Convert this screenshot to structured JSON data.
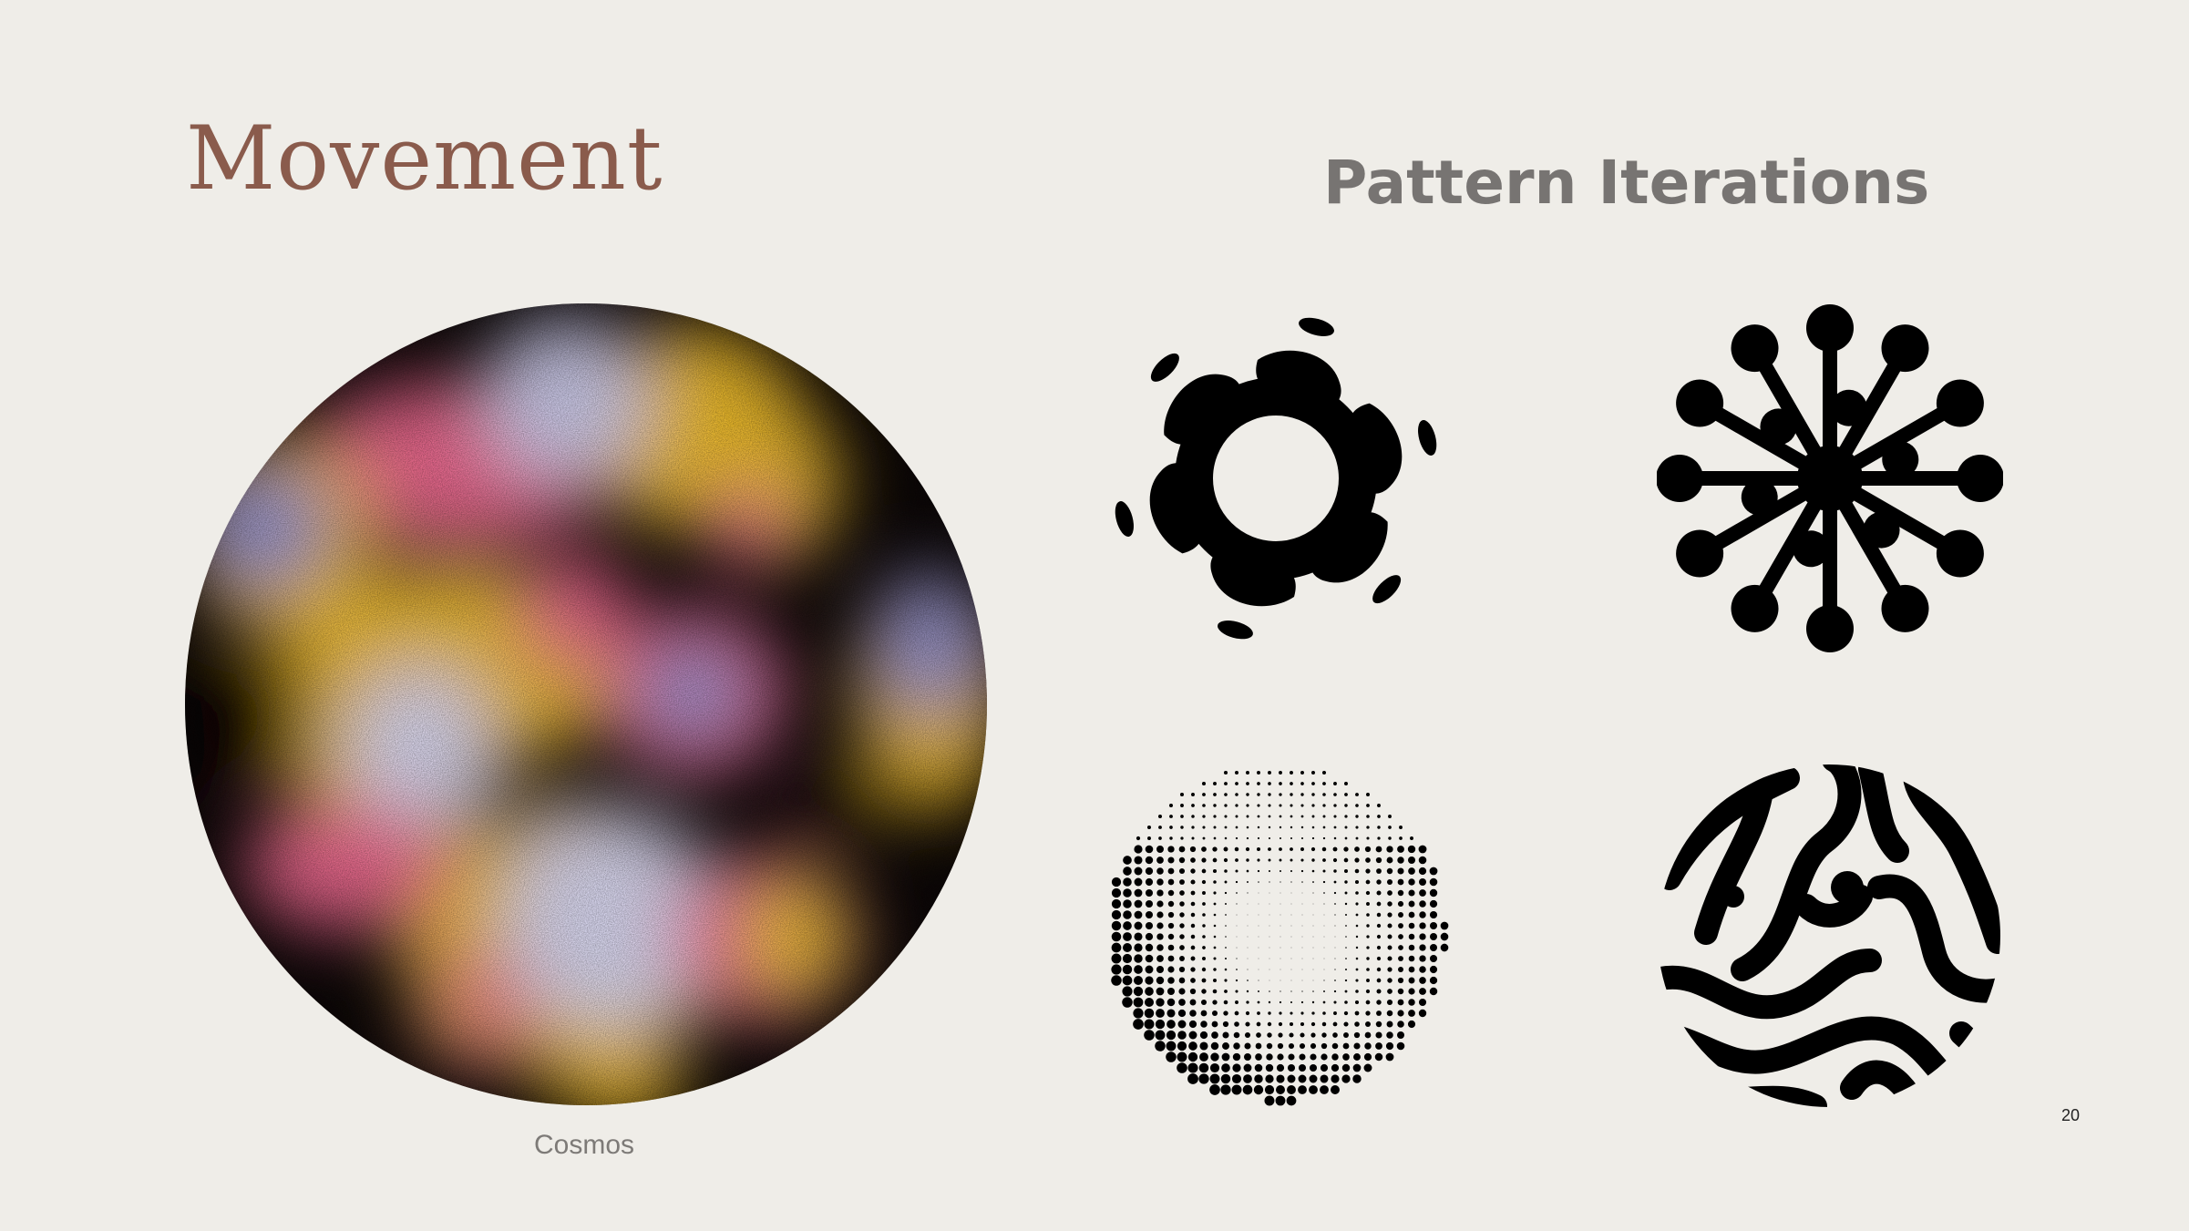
{
  "slide": {
    "title": "Movement",
    "subtitle": "Pattern Iterations",
    "caption": "Cosmos",
    "page_number": "20"
  },
  "colors": {
    "background": "#efede8",
    "title": "#8a5b4c",
    "subtitle": "#777472",
    "pattern_ink": "#000000",
    "cosmos_palette": [
      "#0b0606",
      "#e5658a",
      "#e8b72a",
      "#c9c7e6",
      "#8e8ec8"
    ]
  },
  "images": [
    {
      "name": "cosmos-image",
      "description": "gradient cosmos circle"
    },
    {
      "name": "pattern-radial-blobs",
      "description": "swirling blob ring"
    },
    {
      "name": "pattern-dandelion",
      "description": "radial stems with dots"
    },
    {
      "name": "pattern-halftone",
      "description": "halftone dot circle"
    },
    {
      "name": "pattern-organic-stripes",
      "description": "organic stripes circle"
    }
  ]
}
